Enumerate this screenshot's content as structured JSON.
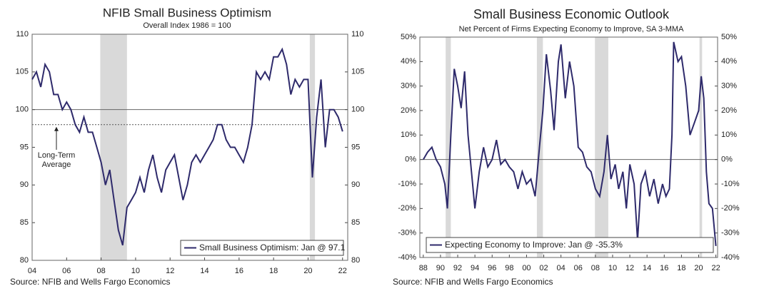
{
  "chart_data": [
    {
      "type": "line",
      "title": "NFIB Small Business Optimism",
      "subtitle": "Overall Index 1986 = 100",
      "source": "Source: NFIB and Wells Fargo Economics",
      "xlim": [
        2004,
        2022.3
      ],
      "xticks": [
        {
          "value": 2004,
          "label": "04"
        },
        {
          "value": 2006,
          "label": "06"
        },
        {
          "value": 2008,
          "label": "08"
        },
        {
          "value": 2010,
          "label": "10"
        },
        {
          "value": 2012,
          "label": "12"
        },
        {
          "value": 2014,
          "label": "14"
        },
        {
          "value": 2016,
          "label": "16"
        },
        {
          "value": 2018,
          "label": "18"
        },
        {
          "value": 2020,
          "label": "20"
        },
        {
          "value": 2022,
          "label": "22"
        }
      ],
      "ylim": [
        80,
        110
      ],
      "yticks": [
        80,
        85,
        90,
        95,
        100,
        105,
        110
      ],
      "recessions": [
        [
          2007.95,
          2009.5
        ],
        [
          2020.1,
          2020.4
        ]
      ],
      "reference_lines": [
        {
          "value": 100,
          "style": "solid"
        },
        {
          "value": 98,
          "style": "dashed",
          "label": "Long-Term Average"
        }
      ],
      "legend": "lower right",
      "series": [
        {
          "name": "Small Business Optimism: Jan @ 97.1",
          "color": "#2e2a6b",
          "x": [
            2004.0,
            2004.25,
            2004.5,
            2004.75,
            2005.0,
            2005.25,
            2005.5,
            2005.75,
            2006.0,
            2006.25,
            2006.5,
            2006.75,
            2007.0,
            2007.25,
            2007.5,
            2007.75,
            2008.0,
            2008.25,
            2008.5,
            2008.75,
            2009.0,
            2009.25,
            2009.5,
            2009.75,
            2010.0,
            2010.25,
            2010.5,
            2010.75,
            2011.0,
            2011.25,
            2011.5,
            2011.75,
            2012.0,
            2012.25,
            2012.5,
            2012.75,
            2013.0,
            2013.25,
            2013.5,
            2013.75,
            2014.0,
            2014.25,
            2014.5,
            2014.75,
            2015.0,
            2015.25,
            2015.5,
            2015.75,
            2016.0,
            2016.25,
            2016.5,
            2016.75,
            2017.0,
            2017.25,
            2017.5,
            2017.75,
            2018.0,
            2018.25,
            2018.5,
            2018.75,
            2019.0,
            2019.25,
            2019.5,
            2019.75,
            2020.0,
            2020.25,
            2020.5,
            2020.75,
            2021.0,
            2021.25,
            2021.5,
            2021.75,
            2022.0
          ],
          "values": [
            104,
            105,
            103,
            106,
            105,
            102,
            102,
            100,
            101,
            100,
            98,
            97,
            99,
            97,
            97,
            95,
            93,
            90,
            92,
            88,
            84,
            82,
            87,
            88,
            89,
            91,
            89,
            92,
            94,
            91,
            89,
            92,
            93,
            94,
            91,
            88,
            90,
            93,
            94,
            93,
            94,
            95,
            96,
            98,
            98,
            96,
            95,
            95,
            94,
            93,
            95,
            98,
            105,
            104,
            105,
            104,
            107,
            107,
            108,
            106,
            102,
            104,
            103,
            104,
            104,
            91,
            99,
            104,
            95,
            100,
            100,
            99,
            97.1
          ]
        }
      ]
    },
    {
      "type": "line",
      "title": "Small Business Economic Outlook",
      "subtitle": "Net Percent of Firms Expecting Economy to Improve, SA 3-MMA",
      "source": "Source: NFIB and Wells Fargo Economics",
      "xlim": [
        1987.6,
        2022.2
      ],
      "xticks": [
        {
          "value": 1988,
          "label": "88"
        },
        {
          "value": 1990,
          "label": "90"
        },
        {
          "value": 1992,
          "label": "92"
        },
        {
          "value": 1994,
          "label": "94"
        },
        {
          "value": 1996,
          "label": "96"
        },
        {
          "value": 1998,
          "label": "98"
        },
        {
          "value": 2000,
          "label": "00"
        },
        {
          "value": 2002,
          "label": "02"
        },
        {
          "value": 2004,
          "label": "04"
        },
        {
          "value": 2006,
          "label": "06"
        },
        {
          "value": 2008,
          "label": "08"
        },
        {
          "value": 2010,
          "label": "10"
        },
        {
          "value": 2012,
          "label": "12"
        },
        {
          "value": 2014,
          "label": "14"
        },
        {
          "value": 2016,
          "label": "16"
        },
        {
          "value": 2018,
          "label": "18"
        },
        {
          "value": 2020,
          "label": "20"
        },
        {
          "value": 2022,
          "label": "22"
        }
      ],
      "ylim": [
        -40,
        50
      ],
      "yticks": [
        {
          "value": -40,
          "label": "-40%"
        },
        {
          "value": -30,
          "label": "-30%"
        },
        {
          "value": -20,
          "label": "-20%"
        },
        {
          "value": -10,
          "label": "-10%"
        },
        {
          "value": 0,
          "label": "0%"
        },
        {
          "value": 10,
          "label": "10%"
        },
        {
          "value": 20,
          "label": "20%"
        },
        {
          "value": 30,
          "label": "30%"
        },
        {
          "value": 40,
          "label": "40%"
        },
        {
          "value": 50,
          "label": "50%"
        }
      ],
      "recessions": [
        [
          1990.6,
          1991.2
        ],
        [
          2001.2,
          2001.9
        ],
        [
          2007.95,
          2009.5
        ],
        [
          2020.1,
          2020.4
        ]
      ],
      "reference_lines": [
        {
          "value": 0,
          "style": "solid"
        }
      ],
      "legend": "lower right",
      "series": [
        {
          "name": "Expecting Economy to Improve: Jan @ -35.3%",
          "color": "#2e2a6b",
          "x": [
            1988.0,
            1988.5,
            1989.0,
            1989.5,
            1990.0,
            1990.5,
            1990.8,
            1991.2,
            1991.6,
            1992.0,
            1992.4,
            1992.8,
            1993.2,
            1993.6,
            1994.0,
            1994.5,
            1995.0,
            1995.5,
            1996.0,
            1996.5,
            1997.0,
            1997.5,
            1998.0,
            1998.5,
            1999.0,
            1999.5,
            2000.0,
            2000.5,
            2001.0,
            2001.5,
            2001.9,
            2002.3,
            2002.8,
            2003.2,
            2003.7,
            2004.0,
            2004.5,
            2005.0,
            2005.5,
            2006.0,
            2006.5,
            2007.0,
            2007.5,
            2008.0,
            2008.5,
            2009.0,
            2009.4,
            2009.8,
            2010.3,
            2010.7,
            2011.2,
            2011.6,
            2012.0,
            2012.5,
            2012.9,
            2013.3,
            2013.8,
            2014.3,
            2014.8,
            2015.3,
            2015.8,
            2016.2,
            2016.6,
            2016.9,
            2017.1,
            2017.6,
            2018.0,
            2018.5,
            2019.0,
            2019.5,
            2020.0,
            2020.3,
            2020.6,
            2020.9,
            2021.2,
            2021.6,
            2022.0
          ],
          "values": [
            0,
            3,
            5,
            0,
            -3,
            -10,
            -20,
            10,
            37,
            30,
            21,
            36,
            10,
            -5,
            -20,
            -5,
            5,
            -3,
            0,
            8,
            -2,
            0,
            -3,
            -5,
            -12,
            -5,
            -10,
            -8,
            -15,
            5,
            20,
            43,
            28,
            12,
            40,
            47,
            25,
            40,
            30,
            5,
            3,
            -3,
            -5,
            -12,
            -15,
            -5,
            10,
            -8,
            -2,
            -12,
            -5,
            -20,
            -2,
            -10,
            -33,
            -10,
            -5,
            -15,
            -8,
            -18,
            -10,
            -15,
            -12,
            10,
            48,
            40,
            42,
            30,
            10,
            15,
            20,
            34,
            25,
            -5,
            -18,
            -20,
            -35.3
          ]
        }
      ]
    }
  ]
}
